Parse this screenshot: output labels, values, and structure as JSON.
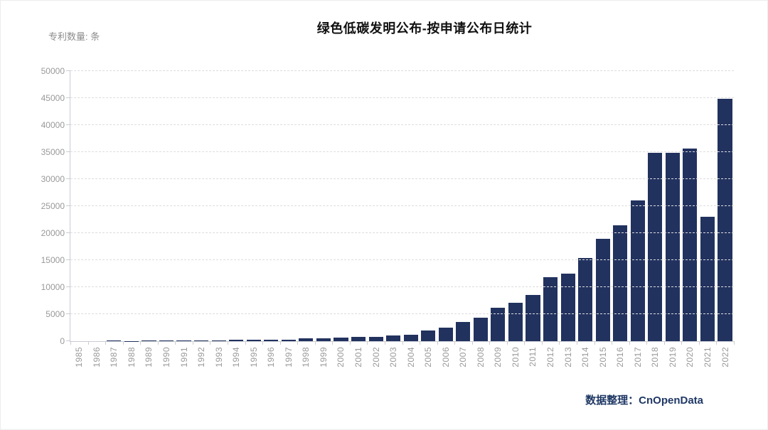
{
  "page": {
    "title": "绿色低碳发明公布-按申请公布日统计",
    "y_unit_label": "专利数量: 条",
    "credit": "数据整理：CnOpenData"
  },
  "colors": {
    "bar": "#22325f",
    "title_text": "#111111",
    "axis_line": "#c9ccd4",
    "gridline": "#dddddd",
    "tick_label": "#999999",
    "unit_label": "#8c8c8c",
    "credit_text": "#1f3864"
  },
  "chart_data": {
    "type": "bar",
    "title": "绿色低碳发明公布-按申请公布日统计",
    "ylabel": "专利数量: 条",
    "xlabel": "",
    "categories": [
      "1985",
      "1986",
      "1987",
      "1988",
      "1989",
      "1990",
      "1991",
      "1992",
      "1993",
      "1994",
      "1995",
      "1996",
      "1997",
      "1998",
      "1999",
      "2000",
      "2001",
      "2002",
      "2003",
      "2004",
      "2005",
      "2006",
      "2007",
      "2008",
      "2009",
      "2010",
      "2011",
      "2012",
      "2013",
      "2014",
      "2015",
      "2016",
      "2017",
      "2018",
      "2019",
      "2020",
      "2021",
      "2022"
    ],
    "values": [
      2,
      6,
      180,
      40,
      160,
      160,
      150,
      160,
      170,
      260,
      260,
      210,
      330,
      560,
      500,
      680,
      800,
      800,
      1100,
      1200,
      2000,
      2500,
      3500,
      4400,
      6200,
      7100,
      8600,
      11800,
      12500,
      15400,
      19000,
      21500,
      26100,
      34900,
      34900,
      35700,
      23000,
      44900
    ],
    "ylim": [
      0,
      50000
    ],
    "ytick_step": 5000,
    "yticks": [
      0,
      5000,
      10000,
      15000,
      20000,
      25000,
      30000,
      35000,
      40000,
      45000,
      50000
    ],
    "grid": "horizontal-dashed",
    "legend": "none",
    "x_tick_label_rotation": 90,
    "bar_color": "#22325f",
    "source_note": "数据整理：CnOpenData"
  }
}
